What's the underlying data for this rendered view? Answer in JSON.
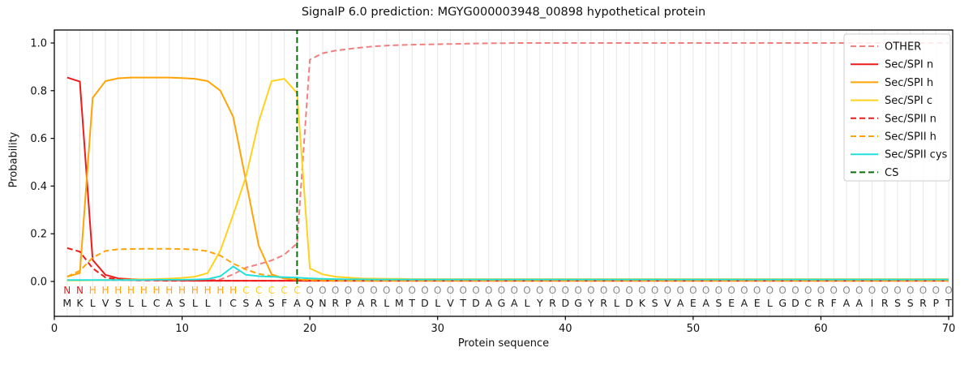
{
  "chart_data": {
    "type": "line",
    "title": "SignalP 6.0 prediction: MGYG000003948_00898 hypothetical protein",
    "xlabel": "Protein sequence",
    "ylabel": "Probability",
    "xlim": [
      0,
      70.35
    ],
    "ylim": [
      0,
      1.0
    ],
    "xticks": [
      0,
      10,
      20,
      30,
      40,
      50,
      60,
      70
    ],
    "yticks": [
      "0.0",
      "0.2",
      "0.4",
      "0.6",
      "0.8",
      "1.0"
    ],
    "grid": true,
    "grid_color": "#e7e7e7",
    "legend_position": "upper right",
    "x_positions": "residue index 1-70 (values arrays are indexed by position-1)",
    "series": [
      {
        "name": "OTHER",
        "color": "#f08080",
        "dash": true,
        "values": [
          0.005,
          0.005,
          0.005,
          0.005,
          0.005,
          0.005,
          0.005,
          0.005,
          0.005,
          0.005,
          0.005,
          0.006,
          0.008,
          0.03,
          0.058,
          0.072,
          0.088,
          0.112,
          0.16,
          0.93,
          0.957,
          0.968,
          0.975,
          0.981,
          0.986,
          0.989,
          0.991,
          0.993,
          0.994,
          0.995,
          0.996,
          0.997,
          0.998,
          0.999,
          0.999,
          1.0,
          1.0,
          1.0,
          1.0,
          1.0,
          1.0,
          1.0,
          1.0,
          1.0,
          1.0,
          1.0,
          1.0,
          1.0,
          1.0,
          1.0,
          1.0,
          1.0,
          1.0,
          1.0,
          1.0,
          1.0,
          1.0,
          1.0,
          1.0,
          1.0,
          1.0,
          1.0,
          1.0,
          1.0,
          1.0,
          1.0,
          1.0,
          1.0,
          1.0,
          1.0
        ]
      },
      {
        "name": "Sec/SPI n",
        "color": "#ee1b1b",
        "dash": false,
        "values": [
          0.855,
          0.838,
          0.09,
          0.028,
          0.013,
          0.01,
          0.008,
          0.006,
          0.005,
          0.004,
          0.003,
          0.003,
          0.003,
          0.003,
          0.003,
          0.003,
          0.003,
          0.003,
          0.003,
          0.003,
          0.003,
          0.003,
          0.003,
          0.003,
          0.003,
          0.003,
          0.003,
          0.003,
          0.003,
          0.003,
          0.003,
          0.003,
          0.003,
          0.003,
          0.003,
          0.003,
          0.003,
          0.003,
          0.003,
          0.003,
          0.003,
          0.003,
          0.003,
          0.003,
          0.003,
          0.003,
          0.003,
          0.003,
          0.003,
          0.003,
          0.003,
          0.003,
          0.003,
          0.003,
          0.003,
          0.003,
          0.003,
          0.003,
          0.003,
          0.003,
          0.003,
          0.003,
          0.003,
          0.003,
          0.003,
          0.003,
          0.003,
          0.003,
          0.003,
          0.003
        ]
      },
      {
        "name": "Sec/SPI h",
        "color": "#ffa408",
        "dash": false,
        "values": [
          0.02,
          0.035,
          0.77,
          0.84,
          0.852,
          0.855,
          0.855,
          0.855,
          0.855,
          0.853,
          0.85,
          0.84,
          0.8,
          0.69,
          0.42,
          0.15,
          0.03,
          0.012,
          0.007,
          0.005,
          0.004,
          0.004,
          0.004,
          0.004,
          0.004,
          0.004,
          0.004,
          0.004,
          0.004,
          0.004,
          0.004,
          0.004,
          0.004,
          0.004,
          0.004,
          0.004,
          0.004,
          0.004,
          0.004,
          0.004,
          0.004,
          0.004,
          0.004,
          0.004,
          0.004,
          0.004,
          0.004,
          0.004,
          0.004,
          0.004,
          0.004,
          0.004,
          0.004,
          0.004,
          0.004,
          0.004,
          0.004,
          0.004,
          0.004,
          0.004,
          0.004,
          0.004,
          0.004,
          0.004,
          0.004,
          0.004,
          0.004,
          0.004,
          0.004,
          0.004
        ]
      },
      {
        "name": "Sec/SPI c",
        "color": "#ffd21e",
        "dash": false,
        "values": [
          0.004,
          0.004,
          0.005,
          0.006,
          0.007,
          0.008,
          0.009,
          0.01,
          0.012,
          0.015,
          0.02,
          0.035,
          0.13,
          0.28,
          0.44,
          0.67,
          0.84,
          0.85,
          0.79,
          0.055,
          0.03,
          0.02,
          0.016,
          0.013,
          0.012,
          0.011,
          0.011,
          0.01,
          0.01,
          0.01,
          0.01,
          0.01,
          0.01,
          0.01,
          0.01,
          0.01,
          0.01,
          0.01,
          0.01,
          0.01,
          0.01,
          0.01,
          0.01,
          0.01,
          0.01,
          0.01,
          0.01,
          0.01,
          0.01,
          0.01,
          0.01,
          0.01,
          0.01,
          0.01,
          0.01,
          0.01,
          0.01,
          0.01,
          0.01,
          0.01,
          0.01,
          0.01,
          0.01,
          0.01,
          0.01,
          0.01,
          0.01,
          0.01,
          0.01,
          0.01
        ]
      },
      {
        "name": "Sec/SPII n",
        "color": "#ee1b1b",
        "dash": true,
        "values": [
          0.14,
          0.125,
          0.055,
          0.017,
          0.008,
          0.005,
          0.004,
          0.004,
          0.003,
          0.003,
          0.003,
          0.003,
          0.003,
          0.003,
          0.003,
          0.003,
          0.003,
          0.003,
          0.003,
          0.003,
          0.003,
          0.003,
          0.003,
          0.003,
          0.003,
          0.003,
          0.003,
          0.003,
          0.003,
          0.003,
          0.003,
          0.003,
          0.003,
          0.003,
          0.003,
          0.003,
          0.003,
          0.003,
          0.003,
          0.003,
          0.003,
          0.003,
          0.003,
          0.003,
          0.003,
          0.003,
          0.003,
          0.003,
          0.003,
          0.003,
          0.003,
          0.003,
          0.003,
          0.003,
          0.003,
          0.003,
          0.003,
          0.003,
          0.003,
          0.003,
          0.003,
          0.003,
          0.003,
          0.003,
          0.003,
          0.003,
          0.003,
          0.003,
          0.003,
          0.003
        ]
      },
      {
        "name": "Sec/SPII h",
        "color": "#ffa408",
        "dash": true,
        "values": [
          0.02,
          0.045,
          0.1,
          0.128,
          0.135,
          0.136,
          0.137,
          0.137,
          0.137,
          0.136,
          0.134,
          0.127,
          0.108,
          0.075,
          0.05,
          0.032,
          0.022,
          0.015,
          0.01,
          0.006,
          0.004,
          0.003,
          0.003,
          0.003,
          0.003,
          0.003,
          0.003,
          0.003,
          0.003,
          0.003,
          0.003,
          0.003,
          0.003,
          0.003,
          0.003,
          0.003,
          0.003,
          0.003,
          0.003,
          0.003,
          0.003,
          0.003,
          0.003,
          0.003,
          0.003,
          0.003,
          0.003,
          0.003,
          0.003,
          0.003,
          0.003,
          0.003,
          0.003,
          0.003,
          0.003,
          0.003,
          0.003,
          0.003,
          0.003,
          0.003,
          0.003,
          0.003,
          0.003,
          0.003,
          0.003,
          0.003,
          0.003,
          0.003,
          0.003,
          0.003
        ]
      },
      {
        "name": "Sec/SPII cys",
        "color": "#22e0dc",
        "dash": false,
        "values": [
          0.006,
          0.006,
          0.006,
          0.006,
          0.006,
          0.006,
          0.006,
          0.007,
          0.007,
          0.007,
          0.008,
          0.01,
          0.022,
          0.063,
          0.028,
          0.022,
          0.02,
          0.018,
          0.016,
          0.013,
          0.011,
          0.01,
          0.009,
          0.009,
          0.008,
          0.008,
          0.008,
          0.008,
          0.008,
          0.008,
          0.008,
          0.008,
          0.008,
          0.008,
          0.008,
          0.008,
          0.008,
          0.008,
          0.008,
          0.008,
          0.008,
          0.008,
          0.008,
          0.008,
          0.008,
          0.008,
          0.008,
          0.008,
          0.008,
          0.008,
          0.008,
          0.008,
          0.008,
          0.008,
          0.008,
          0.008,
          0.008,
          0.008,
          0.008,
          0.008,
          0.008,
          0.008,
          0.008,
          0.008,
          0.008,
          0.008,
          0.008,
          0.008,
          0.008,
          0.008
        ]
      }
    ],
    "cs_line": {
      "name": "CS",
      "position": 19,
      "color": "#0a6e0a",
      "dash": true
    },
    "sequence": {
      "residues": "MKLVSLLCASLLICSASFAQNRPARLMTDLVTDAGALYRDGYRLDKSVAEASEAELGDCRFAAIRSSRPT",
      "regions": [
        {
          "label": "N",
          "start": 1,
          "end": 2
        },
        {
          "label": "H",
          "start": 3,
          "end": 14
        },
        {
          "label": "C",
          "start": 15,
          "end": 19
        },
        {
          "label": "O",
          "start": 20,
          "end": 70
        }
      ],
      "region_colors": {
        "N": "#ee1b1b",
        "H": "#ffa408",
        "C": "#ffd21e",
        "O": "#8a8a8a"
      },
      "residue_color": "#1a1a1a"
    },
    "legend": {
      "entries": [
        "OTHER",
        "Sec/SPI n",
        "Sec/SPI h",
        "Sec/SPI c",
        "Sec/SPII n",
        "Sec/SPII h",
        "Sec/SPII cys",
        "CS"
      ],
      "border_color": "#cccccc",
      "background": "#ffffff"
    }
  }
}
